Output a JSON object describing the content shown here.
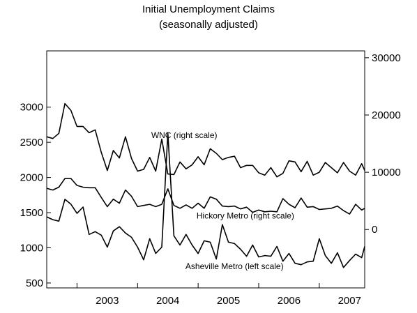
{
  "chart_data": {
    "type": "line",
    "title": "Initial Unemployment Claims",
    "subtitle": "(seasonally adjusted)",
    "xlabel": "",
    "x_axis": {
      "tick_labels": [
        "2003",
        "2004",
        "2005",
        "2006",
        "2007"
      ],
      "range": [
        2002.5,
        2007.75
      ]
    },
    "left_axis": {
      "range": [
        430,
        3800
      ],
      "ticks": [
        500,
        1000,
        1500,
        2000,
        2500,
        3000
      ],
      "tick_labels": [
        "500",
        "1000",
        "1500",
        "2000",
        "2500",
        "3000"
      ]
    },
    "right_axis": {
      "range": [
        -10200,
        31200
      ],
      "ticks": [
        0,
        10000,
        20000,
        30000
      ],
      "tick_labels": [
        "0",
        "10000",
        "20000",
        "30000"
      ]
    },
    "grid": false,
    "legend": "none",
    "series": [
      {
        "name": "WNC (right scale)",
        "axis": "right",
        "label_at": {
          "x": 2004.77,
          "y": 16000
        },
        "x": [
          2002.5,
          2002.6,
          2002.7,
          2002.8,
          2002.9,
          2003.0,
          2003.1,
          2003.2,
          2003.3,
          2003.4,
          2003.5,
          2003.6,
          2003.7,
          2003.8,
          2003.9,
          2004.0,
          2004.1,
          2004.2,
          2004.3,
          2004.4,
          2004.5,
          2004.6,
          2004.7,
          2004.8,
          2004.9,
          2005.0,
          2005.1,
          2005.2,
          2005.3,
          2005.4,
          2005.5,
          2005.6,
          2005.7,
          2005.8,
          2005.9,
          2006.0,
          2006.1,
          2006.2,
          2006.3,
          2006.4,
          2006.5,
          2006.6,
          2006.7,
          2006.8,
          2006.9,
          2007.0,
          2007.1,
          2007.2,
          2007.3,
          2007.4,
          2007.5,
          2007.6,
          2007.7,
          2007.75
        ],
        "values": [
          16200,
          15900,
          16800,
          22000,
          20800,
          18000,
          18000,
          16900,
          17400,
          13500,
          10300,
          13800,
          12500,
          16200,
          12400,
          10200,
          10500,
          12600,
          10200,
          15800,
          9700,
          9600,
          11800,
          10600,
          11300,
          12700,
          11300,
          14100,
          13300,
          12200,
          12600,
          12800,
          10800,
          11200,
          11200,
          9900,
          9500,
          10800,
          9200,
          9800,
          12000,
          11800,
          10100,
          11900,
          9500,
          10000,
          11700,
          10800,
          9900,
          11700,
          10200,
          9500,
          11500,
          10300
        ]
      },
      {
        "name": "Hickory Metro (right scale)",
        "axis": "right",
        "label_at": {
          "x": 2005.78,
          "y": 1900
        },
        "x": [
          2002.5,
          2002.6,
          2002.7,
          2002.8,
          2002.9,
          2003.0,
          2003.1,
          2003.2,
          2003.3,
          2003.4,
          2003.5,
          2003.6,
          2003.7,
          2003.8,
          2003.9,
          2004.0,
          2004.1,
          2004.2,
          2004.3,
          2004.4,
          2004.5,
          2004.6,
          2004.7,
          2004.8,
          2004.9,
          2005.0,
          2005.1,
          2005.2,
          2005.3,
          2005.4,
          2005.5,
          2005.6,
          2005.7,
          2005.8,
          2005.9,
          2006.0,
          2006.1,
          2006.2,
          2006.3,
          2006.4,
          2006.5,
          2006.6,
          2006.7,
          2006.8,
          2006.9,
          2007.0,
          2007.1,
          2007.2,
          2007.3,
          2007.4,
          2007.5,
          2007.6,
          2007.7,
          2007.75
        ],
        "values": [
          7200,
          6900,
          7400,
          8900,
          8900,
          7700,
          7400,
          7300,
          7300,
          5600,
          4000,
          5300,
          4600,
          6900,
          5800,
          4000,
          4200,
          4400,
          4000,
          4400,
          7100,
          4200,
          3700,
          4300,
          3700,
          4600,
          3700,
          5700,
          5300,
          4100,
          4000,
          4100,
          3600,
          3900,
          3000,
          3400,
          3100,
          3200,
          3100,
          5400,
          4400,
          3800,
          5500,
          3900,
          4000,
          3500,
          3600,
          3700,
          4100,
          3300,
          2700,
          4400,
          3400,
          3700
        ]
      },
      {
        "name": "Asheville Metro (left scale)",
        "axis": "left",
        "label_at": {
          "x": 2005.6,
          "y": 700
        },
        "x": [
          2002.5,
          2002.6,
          2002.7,
          2002.8,
          2002.9,
          2003.0,
          2003.1,
          2003.2,
          2003.3,
          2003.4,
          2003.5,
          2003.6,
          2003.7,
          2003.8,
          2003.9,
          2004.0,
          2004.1,
          2004.2,
          2004.3,
          2004.4,
          2004.5,
          2004.6,
          2004.7,
          2004.8,
          2004.9,
          2005.0,
          2005.1,
          2005.2,
          2005.3,
          2005.4,
          2005.5,
          2005.6,
          2005.7,
          2005.8,
          2005.9,
          2006.0,
          2006.1,
          2006.2,
          2006.3,
          2006.4,
          2006.5,
          2006.6,
          2006.7,
          2006.8,
          2006.9,
          2007.0,
          2007.1,
          2007.2,
          2007.3,
          2007.4,
          2007.5,
          2007.6,
          2007.7,
          2007.75
        ],
        "values": [
          1440,
          1400,
          1380,
          1690,
          1620,
          1490,
          1580,
          1190,
          1230,
          1180,
          1010,
          1240,
          1300,
          1210,
          1150,
          1010,
          830,
          1130,
          920,
          1010,
          2630,
          1170,
          1040,
          1190,
          1040,
          920,
          1100,
          1080,
          840,
          1330,
          1080,
          1060,
          980,
          880,
          1040,
          870,
          890,
          880,
          1020,
          810,
          920,
          780,
          760,
          800,
          810,
          1130,
          890,
          780,
          930,
          720,
          820,
          910,
          860,
          1020
        ]
      }
    ]
  }
}
